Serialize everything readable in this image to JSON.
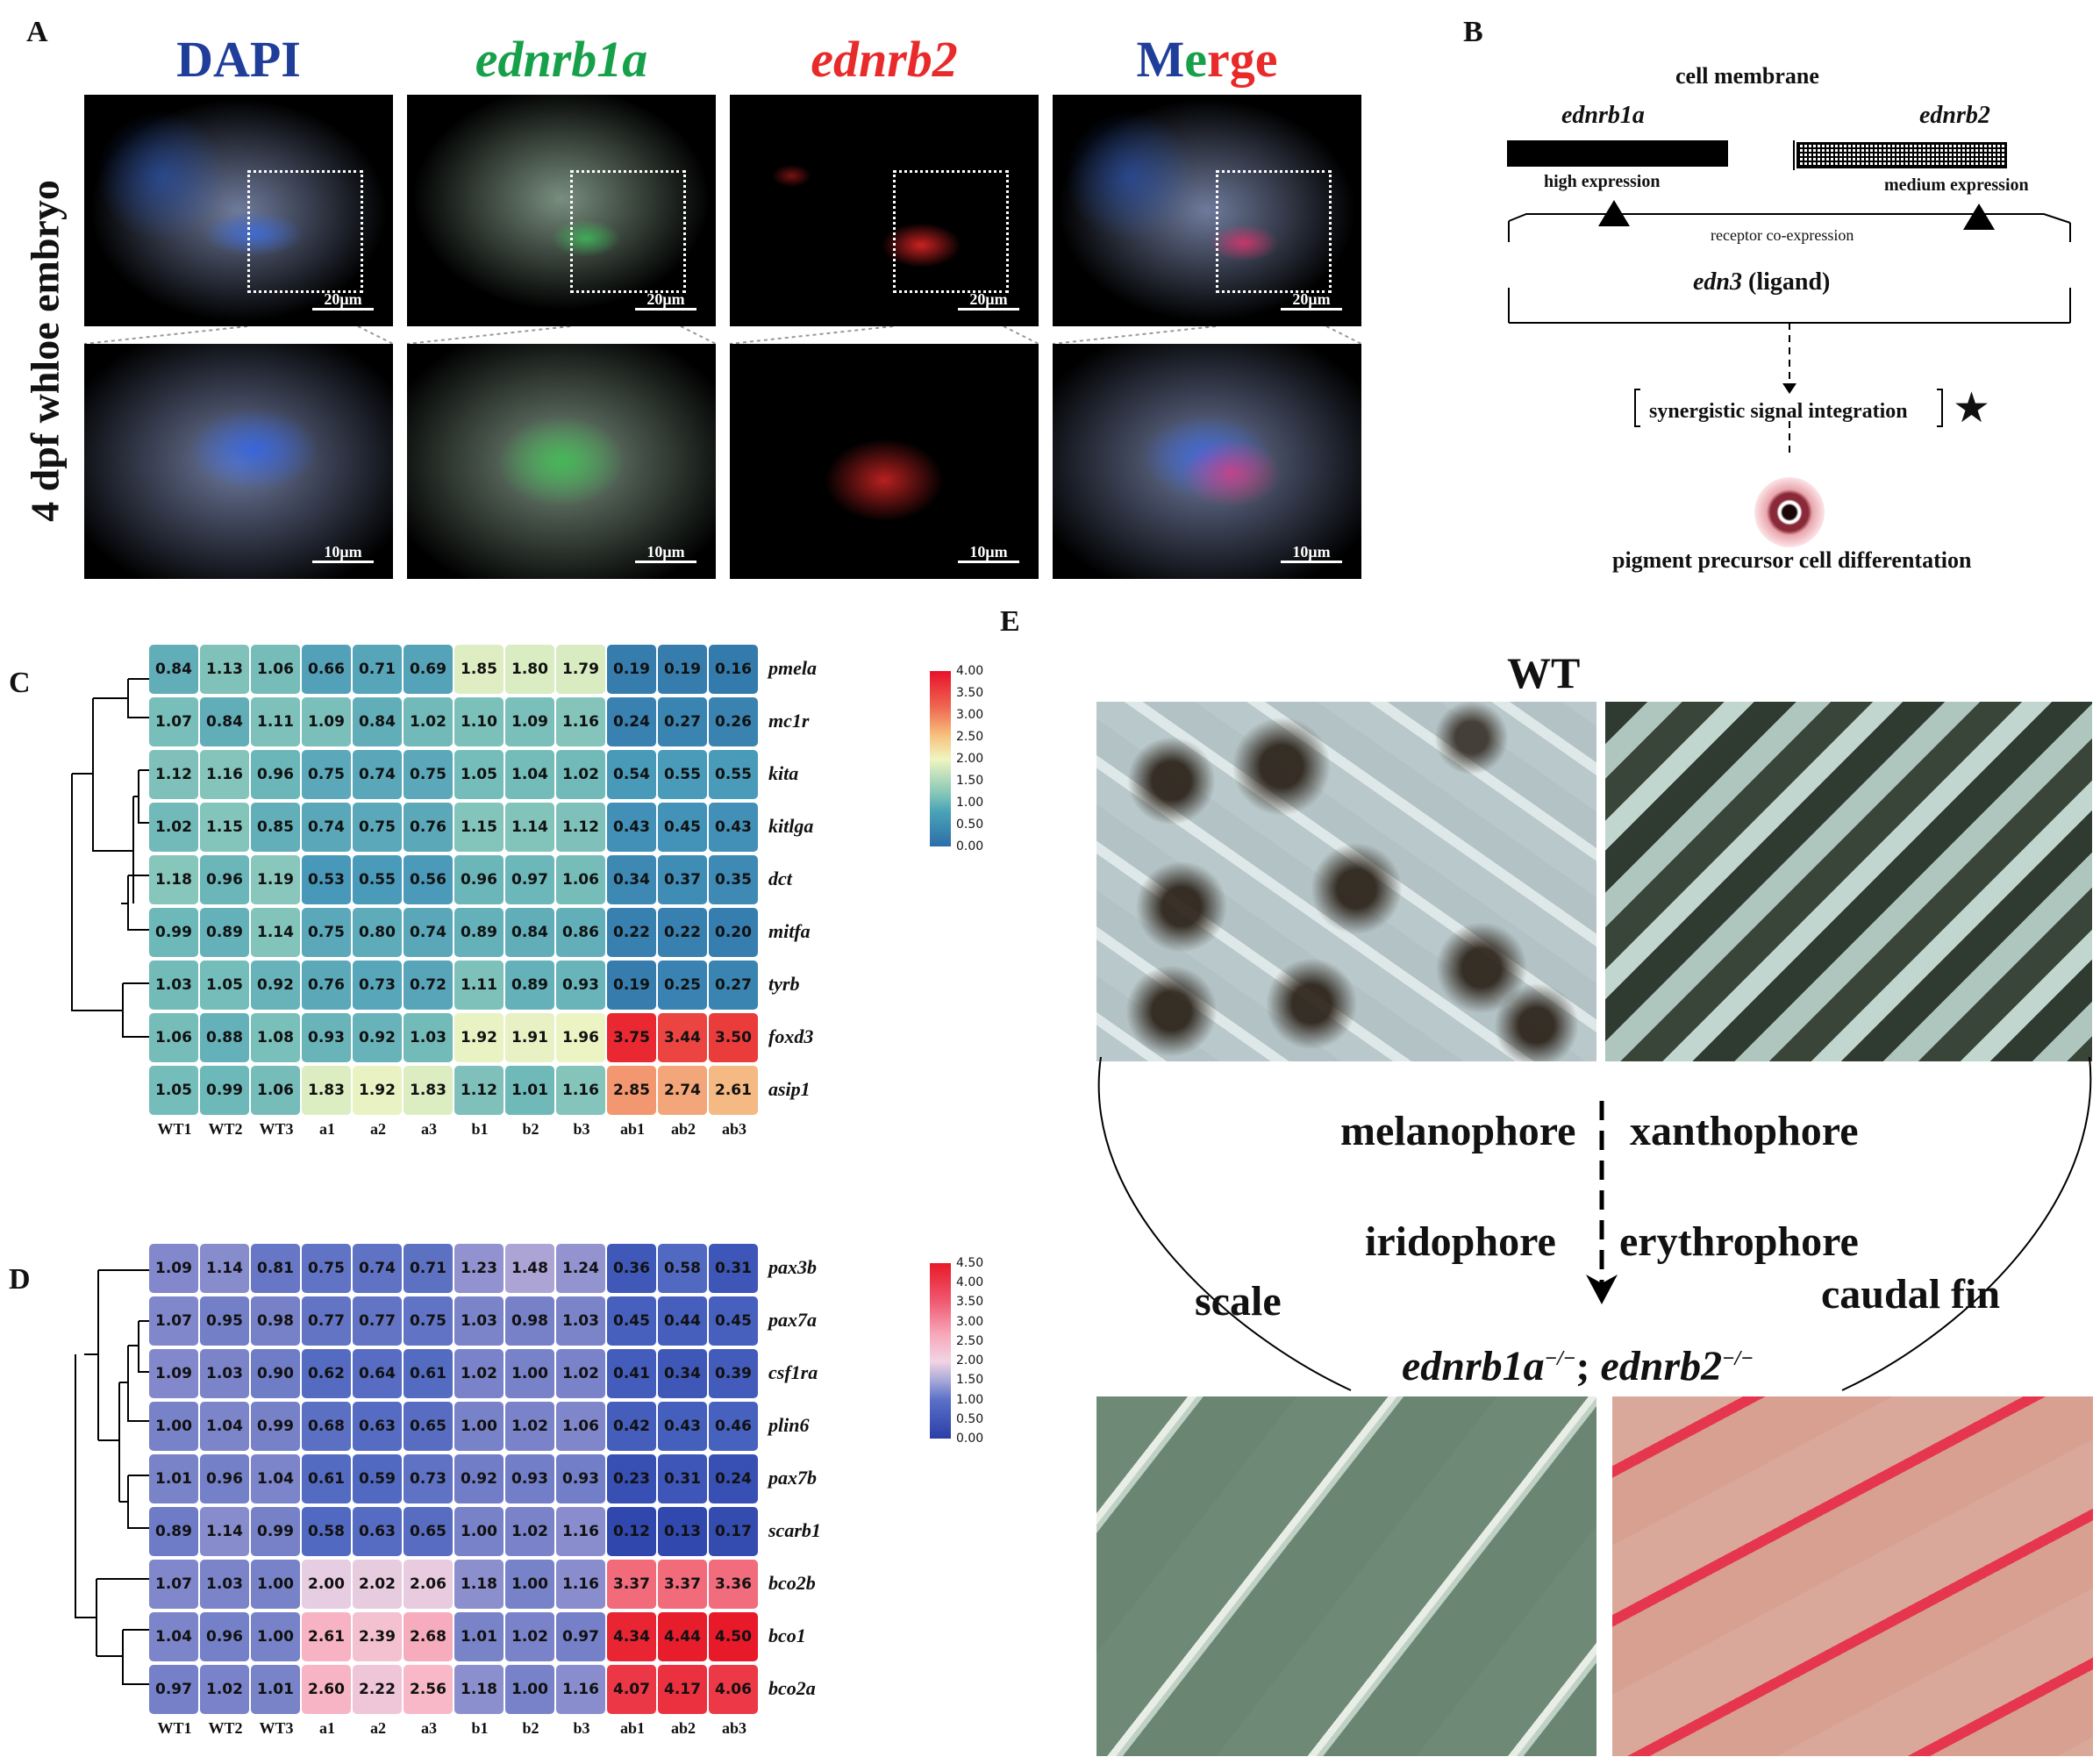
{
  "panels": {
    "A": "A",
    "B": "B",
    "C": "C",
    "D": "D",
    "E": "E"
  },
  "panelA": {
    "titles": {
      "dapi": "DAPI",
      "g": "ednrb1a",
      "r": "ednrb2",
      "merge_m": "M",
      "merge_e1": "e",
      "merge_rg": "rg",
      "merge_e2": "e"
    },
    "side_label": "4 dpf whloe embryo",
    "scale_top": "20μm",
    "scale_bottom": "10μm"
  },
  "panelB": {
    "membrane": "cell membrane",
    "receptor1": "ednrb1a",
    "receptor2": "ednrb2",
    "expr1": "high expression",
    "expr2": "medium expression",
    "coexp": "receptor co-expression",
    "ligand_name": "edn3",
    "ligand_role": " (ligand)",
    "synergy": "synergistic signal integration",
    "outcome": "pigment precursor cell differentation"
  },
  "samples": [
    "WT1",
    "WT2",
    "WT3",
    "a1",
    "a2",
    "a3",
    "b1",
    "b2",
    "b3",
    "ab1",
    "ab2",
    "ab3"
  ],
  "chart_data": [
    {
      "type": "heatmap",
      "panel": "C",
      "rows": [
        "pmela",
        "mc1r",
        "kita",
        "kitlga",
        "dct",
        "mitfa",
        "tyrb",
        "foxd3",
        "asip1"
      ],
      "columns": [
        "WT1",
        "WT2",
        "WT3",
        "a1",
        "a2",
        "a3",
        "b1",
        "b2",
        "b3",
        "ab1",
        "ab2",
        "ab3"
      ],
      "values": [
        [
          0.84,
          1.13,
          1.06,
          0.66,
          0.71,
          0.69,
          1.85,
          1.8,
          1.79,
          0.19,
          0.19,
          0.16
        ],
        [
          1.07,
          0.84,
          1.11,
          1.09,
          0.84,
          1.02,
          1.1,
          1.09,
          1.16,
          0.24,
          0.27,
          0.26
        ],
        [
          1.12,
          1.16,
          0.96,
          0.75,
          0.74,
          0.75,
          1.05,
          1.04,
          1.02,
          0.54,
          0.55,
          0.55
        ],
        [
          1.02,
          1.15,
          0.85,
          0.74,
          0.75,
          0.76,
          1.15,
          1.14,
          1.12,
          0.43,
          0.45,
          0.43
        ],
        [
          1.18,
          0.96,
          1.19,
          0.53,
          0.55,
          0.56,
          0.96,
          0.97,
          1.06,
          0.34,
          0.37,
          0.35
        ],
        [
          0.99,
          0.89,
          1.14,
          0.75,
          0.8,
          0.74,
          0.89,
          0.84,
          0.86,
          0.22,
          0.22,
          0.2
        ],
        [
          1.03,
          1.05,
          0.92,
          0.76,
          0.73,
          0.72,
          1.11,
          0.89,
          0.93,
          0.19,
          0.25,
          0.27
        ],
        [
          1.06,
          0.88,
          1.08,
          0.93,
          0.92,
          1.03,
          1.92,
          1.91,
          1.96,
          3.75,
          3.44,
          3.5
        ],
        [
          1.05,
          0.99,
          1.06,
          1.83,
          1.92,
          1.83,
          1.12,
          1.01,
          1.16,
          2.85,
          2.74,
          2.61
        ]
      ],
      "colorbar": {
        "ticks": [
          "4.00",
          "3.50",
          "3.00",
          "2.50",
          "2.00",
          "1.50",
          "1.00",
          "0.50",
          "0.00"
        ],
        "range": [
          0,
          4
        ]
      }
    },
    {
      "type": "heatmap",
      "panel": "D",
      "rows": [
        "pax3b",
        "pax7a",
        "csf1ra",
        "plin6",
        "pax7b",
        "scarb1",
        "bco2b",
        "bco1",
        "bco2a"
      ],
      "columns": [
        "WT1",
        "WT2",
        "WT3",
        "a1",
        "a2",
        "a3",
        "b1",
        "b2",
        "b3",
        "ab1",
        "ab2",
        "ab3"
      ],
      "values": [
        [
          1.09,
          1.14,
          0.81,
          0.75,
          0.74,
          0.71,
          1.23,
          1.48,
          1.24,
          0.36,
          0.58,
          0.31
        ],
        [
          1.07,
          0.95,
          0.98,
          0.77,
          0.77,
          0.75,
          1.03,
          0.98,
          1.03,
          0.45,
          0.44,
          0.45
        ],
        [
          1.09,
          1.03,
          0.9,
          0.62,
          0.64,
          0.61,
          1.02,
          1.0,
          1.02,
          0.41,
          0.34,
          0.39
        ],
        [
          1.0,
          1.04,
          0.99,
          0.68,
          0.63,
          0.65,
          1.0,
          1.02,
          1.06,
          0.42,
          0.43,
          0.46
        ],
        [
          1.01,
          0.96,
          1.04,
          0.61,
          0.59,
          0.73,
          0.92,
          0.93,
          0.93,
          0.23,
          0.31,
          0.24
        ],
        [
          0.89,
          1.14,
          0.99,
          0.58,
          0.63,
          0.65,
          1.0,
          1.02,
          1.16,
          0.12,
          0.13,
          0.17
        ],
        [
          1.07,
          1.03,
          1.0,
          2.0,
          2.02,
          2.06,
          1.18,
          1.0,
          1.16,
          3.37,
          3.37,
          3.36
        ],
        [
          1.04,
          0.96,
          1.0,
          2.61,
          2.39,
          2.68,
          1.01,
          1.02,
          0.97,
          4.34,
          4.44,
          4.5
        ],
        [
          0.97,
          1.02,
          1.01,
          2.6,
          2.22,
          2.56,
          1.18,
          1.0,
          1.16,
          4.07,
          4.17,
          4.06
        ]
      ],
      "colorbar": {
        "ticks": [
          "4.50",
          "4.00",
          "3.50",
          "3.00",
          "2.50",
          "2.00",
          "1.50",
          "1.00",
          "0.50",
          "0.00"
        ],
        "range": [
          0,
          4.5
        ]
      }
    }
  ],
  "panelE": {
    "wt": "WT",
    "melanophore": "melanophore",
    "xanthophore": "xanthophore",
    "iridophore": "iridophore",
    "erythrophore": "erythrophore",
    "scale": "scale",
    "caudal": "caudal fin",
    "genotype1": "ednrb1a",
    "sup1": "−/−",
    "sep": "; ",
    "genotype2": "ednrb2",
    "sup2": "−/−"
  }
}
